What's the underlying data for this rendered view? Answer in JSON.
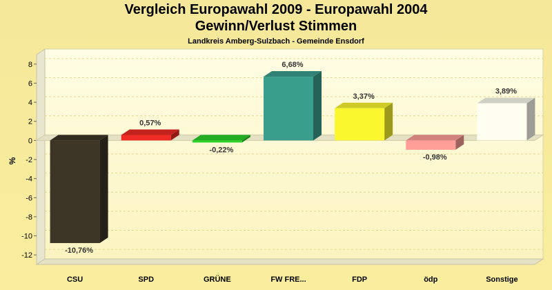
{
  "header": {
    "title_line1": "Vergleich Europawahl 2009 - Europawahl 2004",
    "title_line2": "Gewinn/Verlust Stimmen",
    "subtitle": "Landkreis Amberg-Sulzbach - Gemeinde Ensdorf"
  },
  "chart_data": {
    "type": "bar",
    "title": "Vergleich Europawahl 2009 - Europawahl 2004 / Gewinn/Verlust Stimmen",
    "subtitle": "Landkreis Amberg-Sulzbach - Gemeinde Ensdorf",
    "xlabel": "",
    "ylabel": "%",
    "ylim": [
      -13,
      9
    ],
    "yticks": [
      8,
      6,
      4,
      2,
      0,
      -2,
      -4,
      -6,
      -8,
      -10,
      -12
    ],
    "grid": true,
    "categories": [
      "CSU",
      "SPD",
      "GRÜNE",
      "FW FRE...",
      "FDP",
      "ödp",
      "Sonstige"
    ],
    "values": [
      -10.76,
      0.57,
      -0.22,
      6.68,
      3.37,
      -0.98,
      3.89
    ],
    "labels": [
      "-10,76%",
      "0,57%",
      "-0,22%",
      "6,68%",
      "3,37%",
      "-0,98%",
      "3,89%"
    ],
    "colors": [
      "#3d3627",
      "#ee2b24",
      "#2bd228",
      "#3a9e8d",
      "#fbf72f",
      "#ff9e97",
      "#fffef0"
    ]
  },
  "colors": {
    "background": "#f7eb9c",
    "plot_top": "#fffde4",
    "plot_bottom": "#fbf4c0"
  }
}
